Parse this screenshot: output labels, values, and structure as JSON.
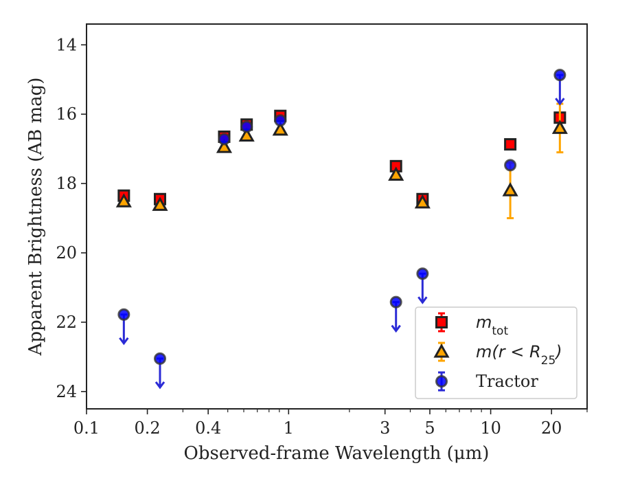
{
  "chart_data": {
    "type": "scatter",
    "xlabel": "Observed-frame Wavelength (μm)",
    "ylabel": "Apparent Brightness (AB mag)",
    "x_scale": "log",
    "xlim": [
      0.1,
      30
    ],
    "ylim": [
      24.5,
      13.4
    ],
    "y_inverted": true,
    "x_ticks": [
      0.1,
      0.2,
      0.4,
      1,
      3,
      5,
      10,
      20
    ],
    "x_tick_labels": [
      "0.1",
      "0.2",
      "0.4",
      "1",
      "3",
      "5",
      "10",
      "20"
    ],
    "y_ticks": [
      14,
      16,
      18,
      20,
      22,
      24
    ],
    "y_tick_labels": [
      "14",
      "16",
      "18",
      "20",
      "22",
      "24"
    ],
    "grid": false,
    "legend_position": "bottom-right",
    "series": [
      {
        "name": "m_tot",
        "legend_main": "m",
        "legend_sub": "tot",
        "marker": "square",
        "color": "#ff0000",
        "edge_color": "#222222",
        "error_color": "#ff0000",
        "points": [
          {
            "x": 0.153,
            "y": 18.35,
            "err": 0.05
          },
          {
            "x": 0.231,
            "y": 18.45,
            "err": 0.05
          },
          {
            "x": 0.48,
            "y": 16.65,
            "err": 0.03
          },
          {
            "x": 0.62,
            "y": 16.3,
            "err": 0.03
          },
          {
            "x": 0.91,
            "y": 16.05,
            "err": 0.03
          },
          {
            "x": 3.4,
            "y": 17.5,
            "err": 0.03
          },
          {
            "x": 4.6,
            "y": 18.45,
            "err": 0.03
          },
          {
            "x": 12.5,
            "y": 16.87,
            "err": 0.03
          },
          {
            "x": 22.0,
            "y": 16.1,
            "err": 0.1
          }
        ]
      },
      {
        "name": "m(r < R25)",
        "legend_main": "m(r < R",
        "legend_sub": "25",
        "legend_tail": ")",
        "marker": "triangle",
        "color": "#ffa500",
        "edge_color": "#222222",
        "error_color": "#ffa500",
        "points": [
          {
            "x": 0.153,
            "y": 18.52,
            "err": 0.05
          },
          {
            "x": 0.231,
            "y": 18.62,
            "err": 0.05
          },
          {
            "x": 0.48,
            "y": 16.95,
            "err": 0.03
          },
          {
            "x": 0.62,
            "y": 16.62,
            "err": 0.03
          },
          {
            "x": 0.91,
            "y": 16.45,
            "err": 0.03
          },
          {
            "x": 3.4,
            "y": 17.75,
            "err": 0.03
          },
          {
            "x": 4.6,
            "y": 18.55,
            "err": 0.03
          },
          {
            "x": 12.5,
            "y": 18.2,
            "err": 0.8
          },
          {
            "x": 22.0,
            "y": 16.4,
            "err": 0.7
          }
        ]
      },
      {
        "name": "Tractor",
        "marker": "circle",
        "color": "#0000ff",
        "edge_color": "#333333",
        "error_color": "#2b2bd6",
        "points": [
          {
            "x": 0.153,
            "y": 21.78,
            "upper_limit": true
          },
          {
            "x": 0.231,
            "y": 23.05,
            "upper_limit": true
          },
          {
            "x": 0.48,
            "y": 16.72
          },
          {
            "x": 0.62,
            "y": 16.36
          },
          {
            "x": 0.91,
            "y": 16.18
          },
          {
            "x": 3.4,
            "y": 21.42,
            "upper_limit": true
          },
          {
            "x": 4.6,
            "y": 20.6,
            "upper_limit": true
          },
          {
            "x": 12.5,
            "y": 17.47
          },
          {
            "x": 22.0,
            "y": 14.87,
            "upper_limit": true
          }
        ]
      }
    ]
  }
}
